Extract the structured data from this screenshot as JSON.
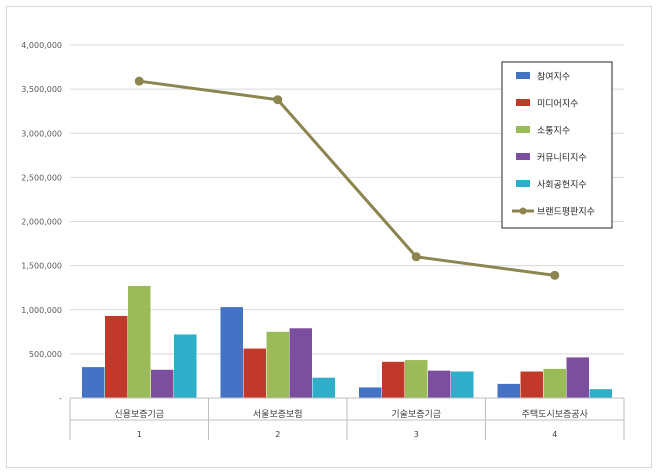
{
  "chart_data": {
    "type": "bar",
    "categories": [
      "신용보증기금",
      "서울보증보험",
      "기술보증기금",
      "주택도시보증공사"
    ],
    "category_numbers": [
      "1",
      "2",
      "3",
      "4"
    ],
    "ylim": [
      0,
      4000000
    ],
    "y_ticks": [
      "-",
      "500,000",
      "1,000,000",
      "1,500,000",
      "2,000,000",
      "2,500,000",
      "3,000,000",
      "3,500,000",
      "4,000,000"
    ],
    "grid": true,
    "legend_position": "right",
    "series": [
      {
        "name": "참여지수",
        "type": "bar",
        "color": "#4472c4",
        "values": [
          350000,
          1030000,
          120000,
          160000
        ]
      },
      {
        "name": "미디어지수",
        "type": "bar",
        "color": "#c0392b",
        "values": [
          930000,
          560000,
          410000,
          300000
        ]
      },
      {
        "name": "소통지수",
        "type": "bar",
        "color": "#9bbb59",
        "values": [
          1270000,
          750000,
          430000,
          330000
        ]
      },
      {
        "name": "커뮤니티지수",
        "type": "bar",
        "color": "#7b4f9e",
        "values": [
          320000,
          790000,
          310000,
          460000
        ]
      },
      {
        "name": "사회공헌지수",
        "type": "bar",
        "color": "#2eaec9",
        "values": [
          720000,
          230000,
          300000,
          100000
        ]
      },
      {
        "name": "브랜드평판지수",
        "type": "line",
        "color": "#8c8550",
        "values": [
          3590000,
          3380000,
          1600000,
          1390000
        ]
      }
    ]
  }
}
